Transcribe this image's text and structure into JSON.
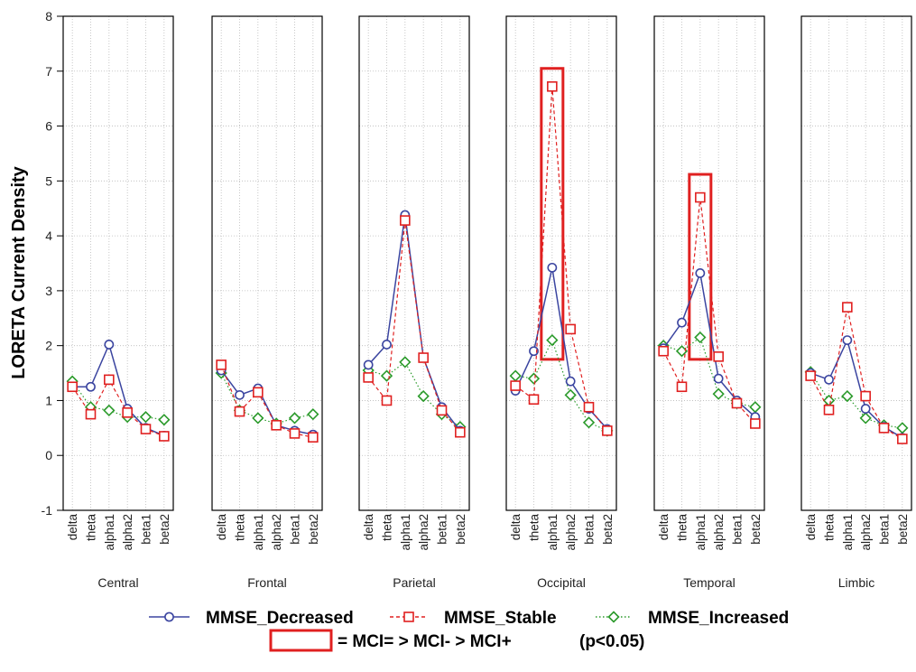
{
  "chart_data": {
    "type": "line",
    "ylabel": "LORETA Current Density",
    "ylim": [
      -1,
      8
    ],
    "yticks": [
      -1,
      0,
      1,
      2,
      3,
      4,
      5,
      6,
      7,
      8
    ],
    "grid": true,
    "legend_position": "bottom",
    "categories": [
      "delta",
      "theta",
      "alpha1",
      "alpha2",
      "beta1",
      "beta2"
    ],
    "panels": [
      {
        "region": "Central",
        "series": [
          {
            "name": "MMSE_Decreased",
            "values": [
              1.25,
              1.25,
              2.02,
              0.85,
              0.5,
              0.36
            ]
          },
          {
            "name": "MMSE_Stable",
            "values": [
              1.25,
              0.75,
              1.38,
              0.78,
              0.48,
              0.35
            ]
          },
          {
            "name": "MMSE_Increased",
            "values": [
              1.35,
              0.88,
              0.82,
              0.7,
              0.7,
              0.65
            ]
          }
        ]
      },
      {
        "region": "Frontal",
        "series": [
          {
            "name": "MMSE_Decreased",
            "values": [
              1.55,
              1.1,
              1.22,
              0.55,
              0.45,
              0.38
            ]
          },
          {
            "name": "MMSE_Stable",
            "values": [
              1.65,
              0.8,
              1.15,
              0.55,
              0.4,
              0.33
            ]
          },
          {
            "name": "MMSE_Increased",
            "values": [
              1.5,
              0.82,
              0.68,
              0.58,
              0.68,
              0.75
            ]
          }
        ]
      },
      {
        "region": "Parietal",
        "series": [
          {
            "name": "MMSE_Decreased",
            "values": [
              1.65,
              2.02,
              4.38,
              1.78,
              0.88,
              0.45
            ]
          },
          {
            "name": "MMSE_Stable",
            "values": [
              1.42,
              1.0,
              4.28,
              1.78,
              0.82,
              0.42
            ]
          },
          {
            "name": "MMSE_Increased",
            "values": [
              1.55,
              1.45,
              1.7,
              1.08,
              0.75,
              0.52
            ]
          }
        ]
      },
      {
        "region": "Occipital",
        "series": [
          {
            "name": "MMSE_Decreased",
            "values": [
              1.18,
              1.9,
              3.42,
              1.35,
              0.85,
              0.48
            ]
          },
          {
            "name": "MMSE_Stable",
            "values": [
              1.27,
              1.02,
              6.72,
              2.3,
              0.88,
              0.45
            ]
          },
          {
            "name": "MMSE_Increased",
            "values": [
              1.45,
              1.4,
              2.1,
              1.1,
              0.6,
              0.45
            ]
          }
        ]
      },
      {
        "region": "Temporal",
        "series": [
          {
            "name": "MMSE_Decreased",
            "values": [
              1.95,
              2.42,
              3.32,
              1.4,
              1.0,
              0.7
            ]
          },
          {
            "name": "MMSE_Stable",
            "values": [
              1.9,
              1.25,
              4.7,
              1.8,
              0.95,
              0.58
            ]
          },
          {
            "name": "MMSE_Increased",
            "values": [
              2.0,
              1.9,
              2.15,
              1.12,
              0.95,
              0.88
            ]
          }
        ]
      },
      {
        "region": "Limbic",
        "series": [
          {
            "name": "MMSE_Decreased",
            "values": [
              1.5,
              1.38,
              2.1,
              0.85,
              0.52,
              0.32
            ]
          },
          {
            "name": "MMSE_Stable",
            "values": [
              1.45,
              0.83,
              2.7,
              1.08,
              0.5,
              0.3
            ]
          },
          {
            "name": "MMSE_Increased",
            "values": [
              1.52,
              1.0,
              1.08,
              0.68,
              0.55,
              0.5
            ]
          }
        ]
      }
    ],
    "highlights": [
      {
        "region": "Occipital",
        "category": "alpha1",
        "ylim": [
          1.75,
          7.05
        ]
      },
      {
        "region": "Temporal",
        "category": "alpha1",
        "ylim": [
          1.75,
          5.12
        ]
      }
    ],
    "legend": [
      {
        "name": "MMSE_Decreased",
        "color": "#3b45a0",
        "marker": "circle",
        "line": "solid"
      },
      {
        "name": "MMSE_Stable",
        "color": "#e02020",
        "marker": "square",
        "line": "dashed"
      },
      {
        "name": "MMSE_Increased",
        "color": "#2a9a2a",
        "marker": "diamond",
        "line": "dotted"
      }
    ],
    "highlight_note": "= MCI= > MCI- > MCI+",
    "significance": "(p<0.05)",
    "highlight_color": "#e02020"
  }
}
